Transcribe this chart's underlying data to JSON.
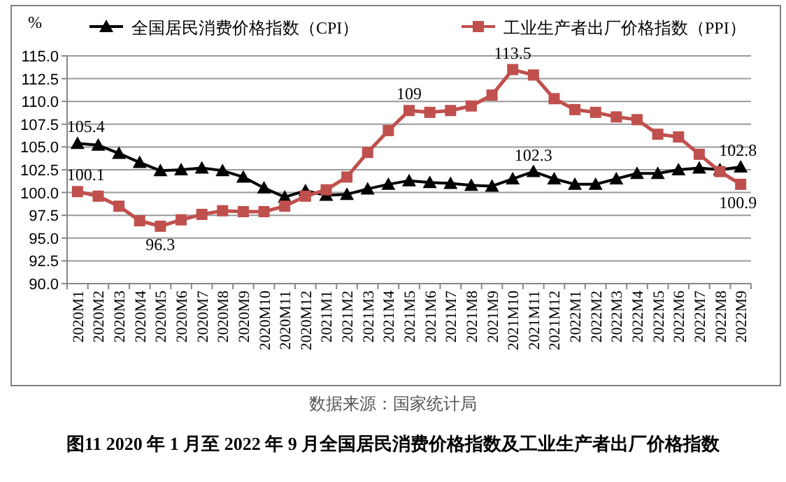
{
  "chart_data": {
    "type": "line",
    "title": "图11  2020 年 1 月至 2022 年 9 月全国居民消费价格指数及工业生产者出厂价格指数",
    "ylabel": "%",
    "annotations": [
      "数据来源：国家统计局"
    ],
    "categories": [
      "2020M1",
      "2020M2",
      "2020M3",
      "2020M4",
      "2020M5",
      "2020M6",
      "2020M7",
      "2020M8",
      "2020M9",
      "2020M10",
      "2020M11",
      "2020M12",
      "2021M1",
      "2021M2",
      "2021M3",
      "2021M4",
      "2021M5",
      "2021M6",
      "2021M7",
      "2021M8",
      "2021M9",
      "2021M10",
      "2021M11",
      "2021M12",
      "2022M1",
      "2022M2",
      "2022M3",
      "2022M4",
      "2022M5",
      "2022M6",
      "2022M7",
      "2022M8",
      "2022M9"
    ],
    "series": [
      {
        "name": "全国居民消费价格指数（CPI）",
        "color": "#000000",
        "marker": "triangle",
        "values": [
          105.4,
          105.2,
          104.3,
          103.3,
          102.4,
          102.5,
          102.7,
          102.4,
          101.7,
          100.5,
          99.5,
          100.2,
          99.7,
          99.8,
          100.4,
          100.9,
          101.3,
          101.1,
          101.0,
          100.8,
          100.7,
          101.5,
          102.3,
          101.5,
          100.9,
          100.9,
          101.5,
          102.1,
          102.1,
          102.5,
          102.7,
          102.5,
          102.8
        ],
        "value_labels": [
          "105.4",
          null,
          null,
          null,
          null,
          null,
          null,
          null,
          null,
          null,
          null,
          null,
          null,
          null,
          null,
          null,
          null,
          null,
          null,
          null,
          null,
          null,
          "102.3",
          null,
          null,
          null,
          null,
          null,
          null,
          null,
          null,
          null,
          "102.8"
        ]
      },
      {
        "name": "工业生产者出厂价格指数（PPI）",
        "color": "#c0504d",
        "marker": "square",
        "values": [
          100.1,
          99.6,
          98.5,
          96.9,
          96.3,
          97.0,
          97.6,
          98.0,
          97.9,
          97.9,
          98.5,
          99.6,
          100.3,
          101.7,
          104.4,
          106.8,
          109.0,
          108.8,
          109.0,
          109.5,
          110.7,
          113.5,
          112.9,
          110.3,
          109.1,
          108.8,
          108.3,
          108.0,
          106.4,
          106.1,
          104.2,
          102.3,
          100.9
        ],
        "value_labels": [
          "100.1",
          null,
          null,
          null,
          "96.3",
          null,
          null,
          null,
          null,
          null,
          null,
          null,
          null,
          null,
          null,
          null,
          "109",
          null,
          null,
          null,
          null,
          "113.5",
          null,
          null,
          null,
          null,
          null,
          null,
          null,
          null,
          null,
          null,
          "100.9"
        ]
      }
    ],
    "ylim": [
      90,
      115
    ],
    "yticks": [
      {
        "value": 90,
        "label": "90.0"
      },
      {
        "value": 92.5,
        "label": "92.5"
      },
      {
        "value": 95,
        "label": "95.0"
      },
      {
        "value": 97.5,
        "label": "97.5"
      },
      {
        "value": 100,
        "label": "100.0"
      },
      {
        "value": 102.5,
        "label": "102.5"
      },
      {
        "value": 105,
        "label": "105.0"
      },
      {
        "value": 107.5,
        "label": "107.5"
      },
      {
        "value": 110,
        "label": "110.0"
      },
      {
        "value": 112.5,
        "label": "112.5"
      },
      {
        "value": 115,
        "label": "115.0"
      }
    ],
    "grid": "y",
    "legend": "top"
  }
}
